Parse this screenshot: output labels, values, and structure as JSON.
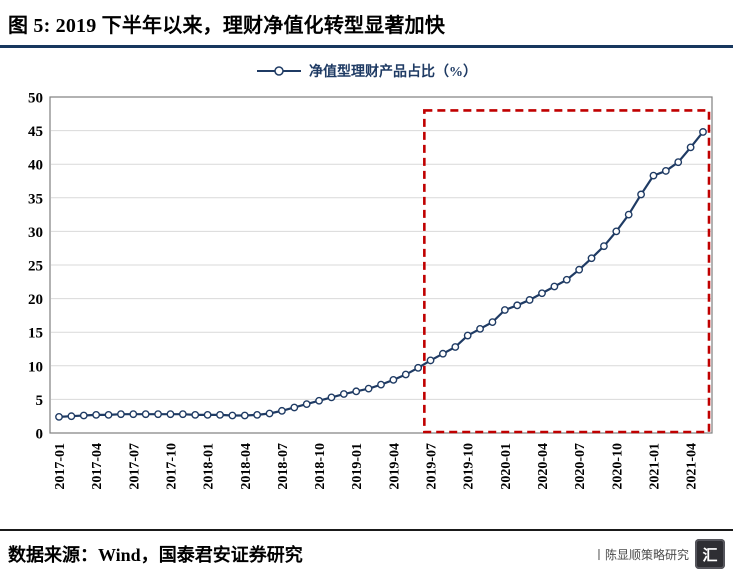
{
  "header": {
    "title": "图 5:  2019 下半年以来，理财净值化转型显著加快"
  },
  "legend": {
    "label": "净值型理财产品占比（%）"
  },
  "footer": {
    "source": "数据来源：Wind，国泰君安证券研究",
    "watermark": "丨陈显顺策略研究",
    "logo_text": "汇"
  },
  "colors": {
    "line": "#1F3B64",
    "marker_fill": "#FFFFFF",
    "highlight_box": "#C00000",
    "grid": "#D9D9D9",
    "axis_border": "#7F7F7F",
    "header_rule": "#17375E",
    "legend_text": "#1F3B64"
  },
  "chart_data": {
    "type": "line",
    "title": "净值型理财产品占比（%）",
    "xlabel": "",
    "ylabel": "",
    "ylim": [
      0,
      50
    ],
    "y_tick_step": 5,
    "x_tick_every": 3,
    "grid": "horizontal",
    "legend_position": "top-center",
    "highlight_box": {
      "from_x": "2019-07",
      "y_top": 48,
      "style": "dashed"
    },
    "x": [
      "2017-01",
      "2017-02",
      "2017-03",
      "2017-04",
      "2017-05",
      "2017-06",
      "2017-07",
      "2017-08",
      "2017-09",
      "2017-10",
      "2017-11",
      "2017-12",
      "2018-01",
      "2018-02",
      "2018-03",
      "2018-04",
      "2018-05",
      "2018-06",
      "2018-07",
      "2018-08",
      "2018-09",
      "2018-10",
      "2018-11",
      "2018-12",
      "2019-01",
      "2019-02",
      "2019-03",
      "2019-04",
      "2019-05",
      "2019-06",
      "2019-07",
      "2019-08",
      "2019-09",
      "2019-10",
      "2019-11",
      "2019-12",
      "2020-01",
      "2020-02",
      "2020-03",
      "2020-04",
      "2020-05",
      "2020-06",
      "2020-07",
      "2020-08",
      "2020-09",
      "2020-10",
      "2020-11",
      "2020-12",
      "2021-01",
      "2021-02",
      "2021-03",
      "2021-04",
      "2021-05"
    ],
    "values": [
      2.4,
      2.5,
      2.6,
      2.7,
      2.7,
      2.8,
      2.8,
      2.8,
      2.8,
      2.8,
      2.8,
      2.7,
      2.7,
      2.7,
      2.6,
      2.6,
      2.7,
      2.9,
      3.3,
      3.8,
      4.3,
      4.8,
      5.3,
      5.8,
      6.2,
      6.6,
      7.2,
      7.9,
      8.7,
      9.7,
      10.8,
      11.8,
      12.8,
      14.5,
      15.5,
      16.5,
      18.3,
      19.0,
      19.8,
      20.8,
      21.8,
      22.8,
      24.3,
      26.0,
      27.8,
      30.0,
      32.5,
      35.5,
      38.3,
      39.0,
      40.3,
      42.5,
      44.8
    ]
  }
}
